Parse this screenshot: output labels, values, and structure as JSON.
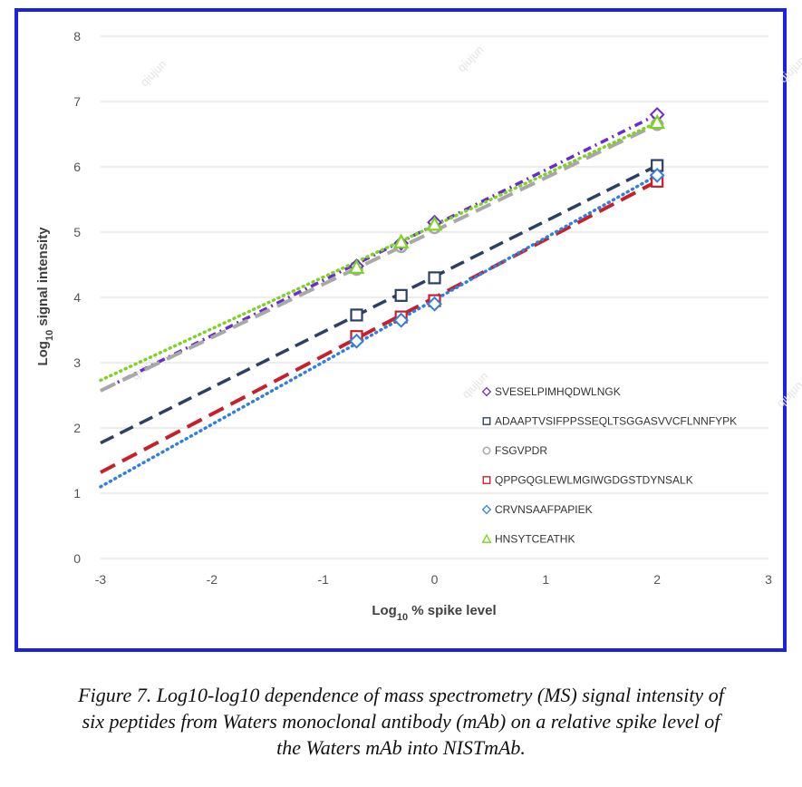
{
  "chart_data": {
    "type": "scatter",
    "xlabel": "Log10 % spike level",
    "ylabel": "Log10 signal intensity",
    "xlim": [
      -3,
      3
    ],
    "ylim": [
      0,
      8
    ],
    "xticks": [
      "-3",
      "-2",
      "-1",
      "0",
      "1",
      "2",
      "3"
    ],
    "yticks": [
      "0",
      "1",
      "2",
      "3",
      "4",
      "5",
      "6",
      "7",
      "8"
    ],
    "grid": "horizontal",
    "legend": "lower-right",
    "series": [
      {
        "name": "SVESELPIMHQDWLNGK",
        "color": "#6a2bd1",
        "marker": "diamond",
        "line": "dash-dot",
        "x": [
          -0.7,
          -0.3,
          0,
          2
        ],
        "y": [
          4.48,
          4.83,
          5.15,
          6.8
        ],
        "trend": {
          "x": [
            -3,
            2
          ],
          "y": [
            2.57,
            6.8
          ]
        }
      },
      {
        "name": "ADAAPTVSIFPPSSEQLTSGGASVVCFLNNFYPK",
        "color": "#2e3f66",
        "marker": "square",
        "line": "dash",
        "x": [
          -0.7,
          -0.3,
          0,
          2
        ],
        "y": [
          3.73,
          4.03,
          4.3,
          6.02
        ],
        "trend": {
          "x": [
            -3,
            2
          ],
          "y": [
            1.77,
            6.02
          ]
        }
      },
      {
        "name": "FSGVPDR",
        "color": "#a8a8a8",
        "marker": "circle",
        "line": "long-dash",
        "x": [
          -0.7,
          -0.3,
          0,
          2
        ],
        "y": [
          4.43,
          4.78,
          5.07,
          6.65
        ],
        "trend": {
          "x": [
            -3,
            2
          ],
          "y": [
            2.57,
            6.65
          ]
        }
      },
      {
        "name": "QPPGQGLEWLMGIWGDGSTDYNSALK",
        "color": "#c8202a",
        "marker": "square",
        "line": "long-dash",
        "x": [
          -0.7,
          -0.3,
          0,
          2
        ],
        "y": [
          3.4,
          3.7,
          3.95,
          5.78
        ],
        "trend": {
          "x": [
            -3,
            2
          ],
          "y": [
            1.32,
            5.78
          ]
        }
      },
      {
        "name": "CRVNSAAFPAPIEK",
        "color": "#2f7fe0",
        "marker": "diamond",
        "line": "dot",
        "x": [
          -0.7,
          -0.3,
          0,
          2
        ],
        "y": [
          3.33,
          3.65,
          3.9,
          5.87
        ],
        "trend": {
          "x": [
            -3,
            2
          ],
          "y": [
            1.1,
            5.87
          ]
        }
      },
      {
        "name": "HNSYTCEATHK",
        "color": "#7ed321",
        "marker": "triangle",
        "line": "dot",
        "x": [
          -0.7,
          -0.3,
          0,
          2
        ],
        "y": [
          4.46,
          4.85,
          5.12,
          6.68
        ],
        "trend": {
          "x": [
            -3,
            2
          ],
          "y": [
            2.73,
            6.68
          ]
        }
      }
    ]
  },
  "watermark": "qiujun",
  "caption": {
    "line1": "Figure 7. Log10-log10 dependence of mass spectrometry (MS) signal intensity of",
    "line2": "six peptides from Waters monoclonal antibody (mAb) on a relative spike level of",
    "line3": "the Waters mAb into NISTmAb."
  }
}
